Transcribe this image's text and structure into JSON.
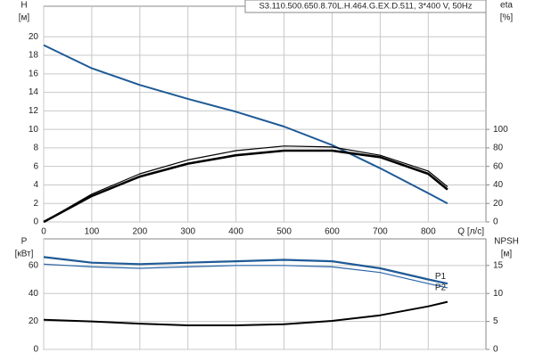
{
  "chart_data": [
    {
      "type": "line",
      "title": "S3.110.500.650.8.70L.H.464.G.EX.D.511, 3*400 V, 50Hz",
      "ylabel": "H",
      "yunit": "[м]",
      "y2label": "eta",
      "y2unit": "[%]",
      "xlabel": "Q [л/с]",
      "x": [
        0,
        100,
        200,
        300,
        400,
        500,
        600,
        700,
        800,
        840
      ],
      "xlim": [
        0,
        920
      ],
      "xticks": [
        0,
        100,
        200,
        300,
        400,
        500,
        600,
        700,
        800
      ],
      "ylim": [
        0,
        23.3
      ],
      "yticks": [
        0,
        2,
        4,
        6,
        8,
        10,
        12,
        14,
        16,
        18,
        20
      ],
      "y2lim": [
        0,
        233
      ],
      "y2ticks": [
        0,
        20,
        40,
        60,
        80,
        100
      ],
      "grid": true,
      "series": [
        {
          "color": "#1f5a96",
          "width": 2,
          "values": [
            19.1,
            16.6,
            14.8,
            13.3,
            11.9,
            10.3,
            8.3,
            5.8,
            3.1,
            2.0
          ]
        },
        {
          "color": "#000000",
          "width": 1.2,
          "axis": "y2",
          "values": [
            0,
            30,
            52,
            67,
            77,
            82,
            81,
            72,
            55,
            38
          ]
        },
        {
          "color": "#000000",
          "width": 2.6,
          "axis": "y2",
          "values": [
            0,
            28,
            49,
            63,
            72,
            77,
            77,
            70,
            52,
            35
          ]
        }
      ]
    },
    {
      "type": "line",
      "ylabel": "P",
      "yunit": "[кВт]",
      "y2label": "NPSH",
      "y2unit": "[м]",
      "x": [
        0,
        100,
        200,
        300,
        400,
        500,
        600,
        700,
        800,
        840
      ],
      "xlim": [
        0,
        920
      ],
      "xticks": [
        0,
        100,
        200,
        300,
        400,
        500,
        600,
        700,
        800
      ],
      "ylim": [
        0,
        79
      ],
      "yticks": [
        0,
        20,
        40,
        60
      ],
      "y2lim": [
        0,
        19.75
      ],
      "y2ticks": [
        0,
        5,
        10,
        15
      ],
      "grid": true,
      "series": [
        {
          "name": "P1",
          "color": "#1f5a96",
          "width": 2.2,
          "values": [
            66,
            62,
            61,
            62,
            63,
            64,
            63,
            58,
            50,
            47
          ]
        },
        {
          "name": "P2",
          "color": "#2a66a8",
          "width": 1.2,
          "values": [
            61,
            59,
            58,
            59,
            60,
            60,
            59,
            55,
            47,
            44
          ]
        },
        {
          "color": "#000000",
          "width": 2,
          "axis": "y2",
          "values": [
            5.3,
            5.0,
            4.6,
            4.3,
            4.3,
            4.5,
            5.1,
            6.1,
            7.7,
            8.5
          ]
        }
      ]
    }
  ]
}
